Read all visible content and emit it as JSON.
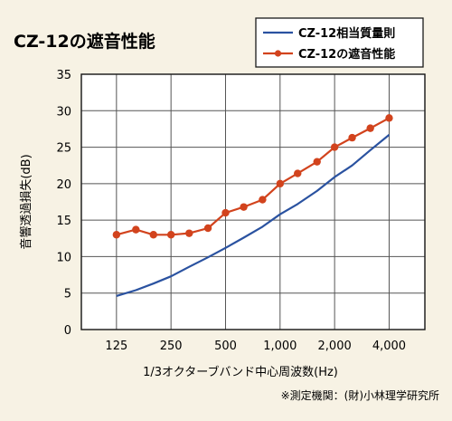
{
  "page": {
    "title": "CZ-12の遮音性能",
    "note": "※測定機関：(財)小林理学研究所"
  },
  "chart_data": {
    "type": "line",
    "title": "CZ-12の遮音性能",
    "xlabel": "1/3オクターブバンド中心周波数(Hz)",
    "ylabel": "音響透過損失(dB)",
    "ylim": [
      0,
      35
    ],
    "yticks": [
      0,
      5,
      10,
      15,
      20,
      25,
      30,
      35
    ],
    "x": [
      125,
      160,
      200,
      250,
      315,
      400,
      500,
      630,
      800,
      1000,
      1250,
      1600,
      2000,
      2500,
      3150,
      4000
    ],
    "x_scale": "log",
    "xlim": [
      80,
      6300
    ],
    "xticks": [
      125,
      250,
      500,
      1000,
      2000,
      4000
    ],
    "xtick_labels": [
      "125",
      "250",
      "500",
      "1,000",
      "2,000",
      "4,000"
    ],
    "grid": true,
    "legend_position": "top-right",
    "series": [
      {
        "name": "CZ-12相当質量則",
        "color": "#2a52a0",
        "marker": "none",
        "values": [
          4.6,
          5.4,
          6.3,
          7.3,
          8.6,
          9.9,
          11.2,
          12.6,
          14.1,
          15.8,
          17.2,
          19.0,
          20.9,
          22.5,
          24.6,
          26.7
        ]
      },
      {
        "name": "CZ-12の遮音性能",
        "color": "#d2431d",
        "marker": "circle",
        "values": [
          13.0,
          13.7,
          13.0,
          13.0,
          13.2,
          13.9,
          16.0,
          16.8,
          17.8,
          20.0,
          21.4,
          23.0,
          25.0,
          26.3,
          27.6,
          29.0
        ]
      }
    ]
  }
}
